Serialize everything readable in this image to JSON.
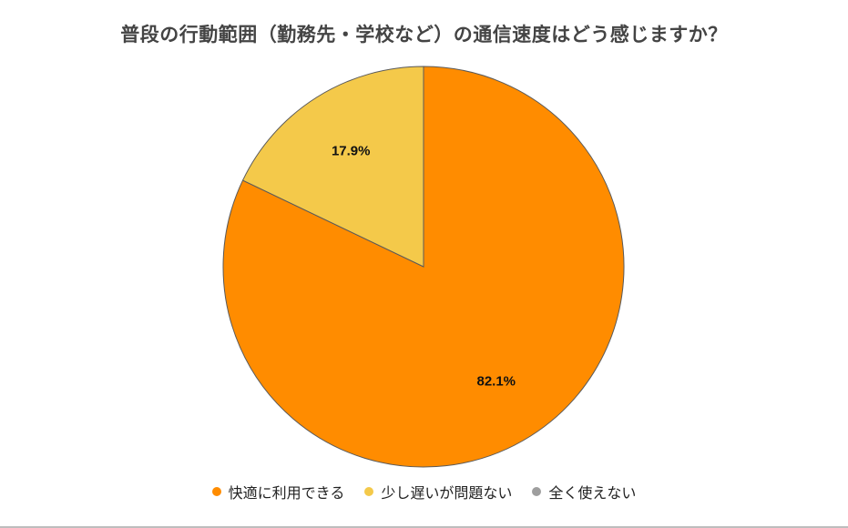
{
  "chart_data": {
    "type": "pie",
    "title": "普段の行動範囲（勤務先・学校など）の通信速度はどう感じますか？",
    "categories": [
      "快適に利用できる",
      "少し遅いが問題ない",
      "全く使えない"
    ],
    "values": [
      82.1,
      17.9,
      0
    ],
    "data_labels": [
      "82.1%",
      "17.9%",
      ""
    ],
    "colors": [
      "#FF8C00",
      "#F4C94A",
      "#9E9E9E"
    ],
    "legend_position": "bottom"
  }
}
